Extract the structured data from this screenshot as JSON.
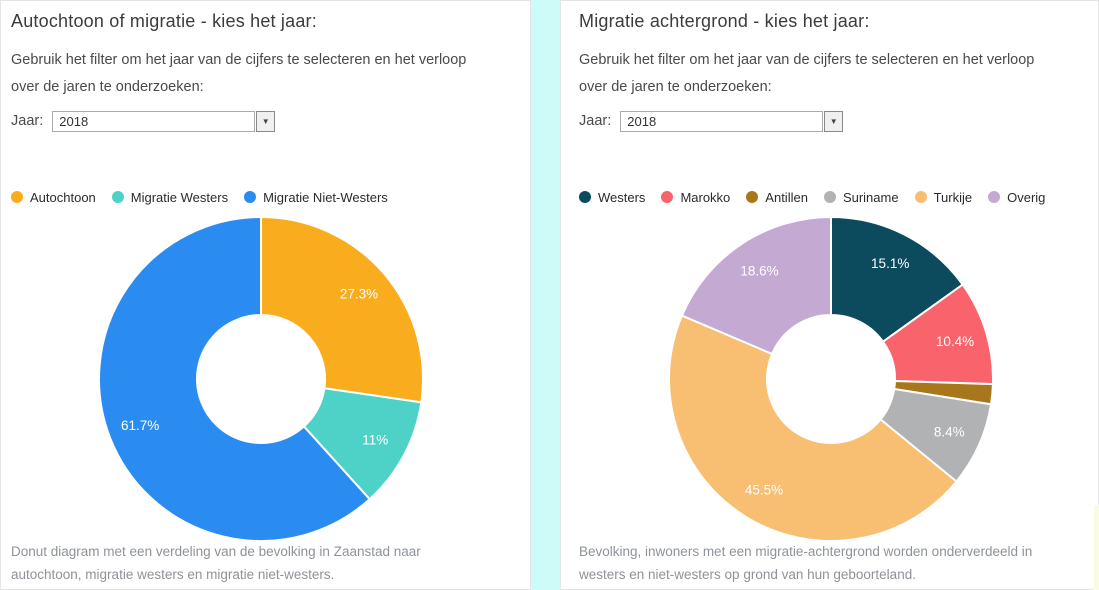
{
  "theme": {
    "divider_color": "#cdfbf8",
    "panel_border_color": "#e4e4e4",
    "slice_label_color": "#ffffff"
  },
  "icons": {
    "dropdown_arrow": "▼"
  },
  "panels": [
    {
      "title": "Autochtoon of migratie - kies het jaar:",
      "description": "Gebruik het filter om het jaar van de cijfers te selecteren en het verloop over de jaren te onderzoeken:",
      "filter_label": "Jaar:",
      "filter_value": "2018",
      "legend": [
        {
          "label": "Autochtoon",
          "color": "#f9ac1d"
        },
        {
          "label": "Migratie Westers",
          "color": "#4ed2c8"
        },
        {
          "label": "Migratie Niet-Westers",
          "color": "#2a8cf0"
        }
      ],
      "caption": "Donut diagram met een verdeling van de bevolking in Zaanstad naar autochtoon, migratie westers en migratie niet-westers."
    },
    {
      "title": "Migratie achtergrond - kies het jaar:",
      "description": "Gebruik het filter om het jaar van de cijfers te selecteren en het verloop over de jaren te onderzoeken:",
      "filter_label": "Jaar:",
      "filter_value": "2018",
      "legend": [
        {
          "label": "Westers",
          "color": "#0c4a5e"
        },
        {
          "label": "Marokko",
          "color": "#f9636c"
        },
        {
          "label": "Antillen",
          "color": "#a9771b"
        },
        {
          "label": "Suriname",
          "color": "#b0b2b4"
        },
        {
          "label": "Turkije",
          "color": "#f8be72"
        },
        {
          "label": "Overig",
          "color": "#c4a9d2"
        }
      ],
      "caption": "Bevolking, inwoners met een migratie-achtergrond worden onderverdeeld in westers en niet-westers op grond van hun geboorteland."
    }
  ],
  "chart_data": [
    {
      "type": "pie",
      "subtype": "donut",
      "title": "Autochtoon of migratie (Zaanstad, 2018)",
      "categories": [
        "Autochtoon",
        "Migratie Westers",
        "Migratie Niet-Westers"
      ],
      "values": [
        27.3,
        11,
        61.7
      ],
      "labels": [
        "27.3%",
        "11%",
        "61.7%"
      ],
      "colors": [
        "#f9ac1d",
        "#4ed2c8",
        "#2a8cf0"
      ],
      "start_angle_deg": 0,
      "direction": "clockwise",
      "legend_position": "top"
    },
    {
      "type": "pie",
      "subtype": "donut",
      "title": "Migratie achtergrond (Zaanstad, 2018)",
      "categories": [
        "Westers",
        "Marokko",
        "Antillen",
        "Suriname",
        "Turkije",
        "Overig"
      ],
      "values": [
        15.1,
        10.4,
        2.0,
        8.4,
        45.5,
        18.6
      ],
      "labels": [
        "15.1%",
        "10.4%",
        "",
        "8.4%",
        "45.5%",
        "18.6%"
      ],
      "colors": [
        "#0c4a5e",
        "#f9636c",
        "#a9771b",
        "#b0b2b4",
        "#f8be72",
        "#c4a9d2"
      ],
      "start_angle_deg": 0,
      "direction": "clockwise",
      "legend_position": "top"
    }
  ]
}
